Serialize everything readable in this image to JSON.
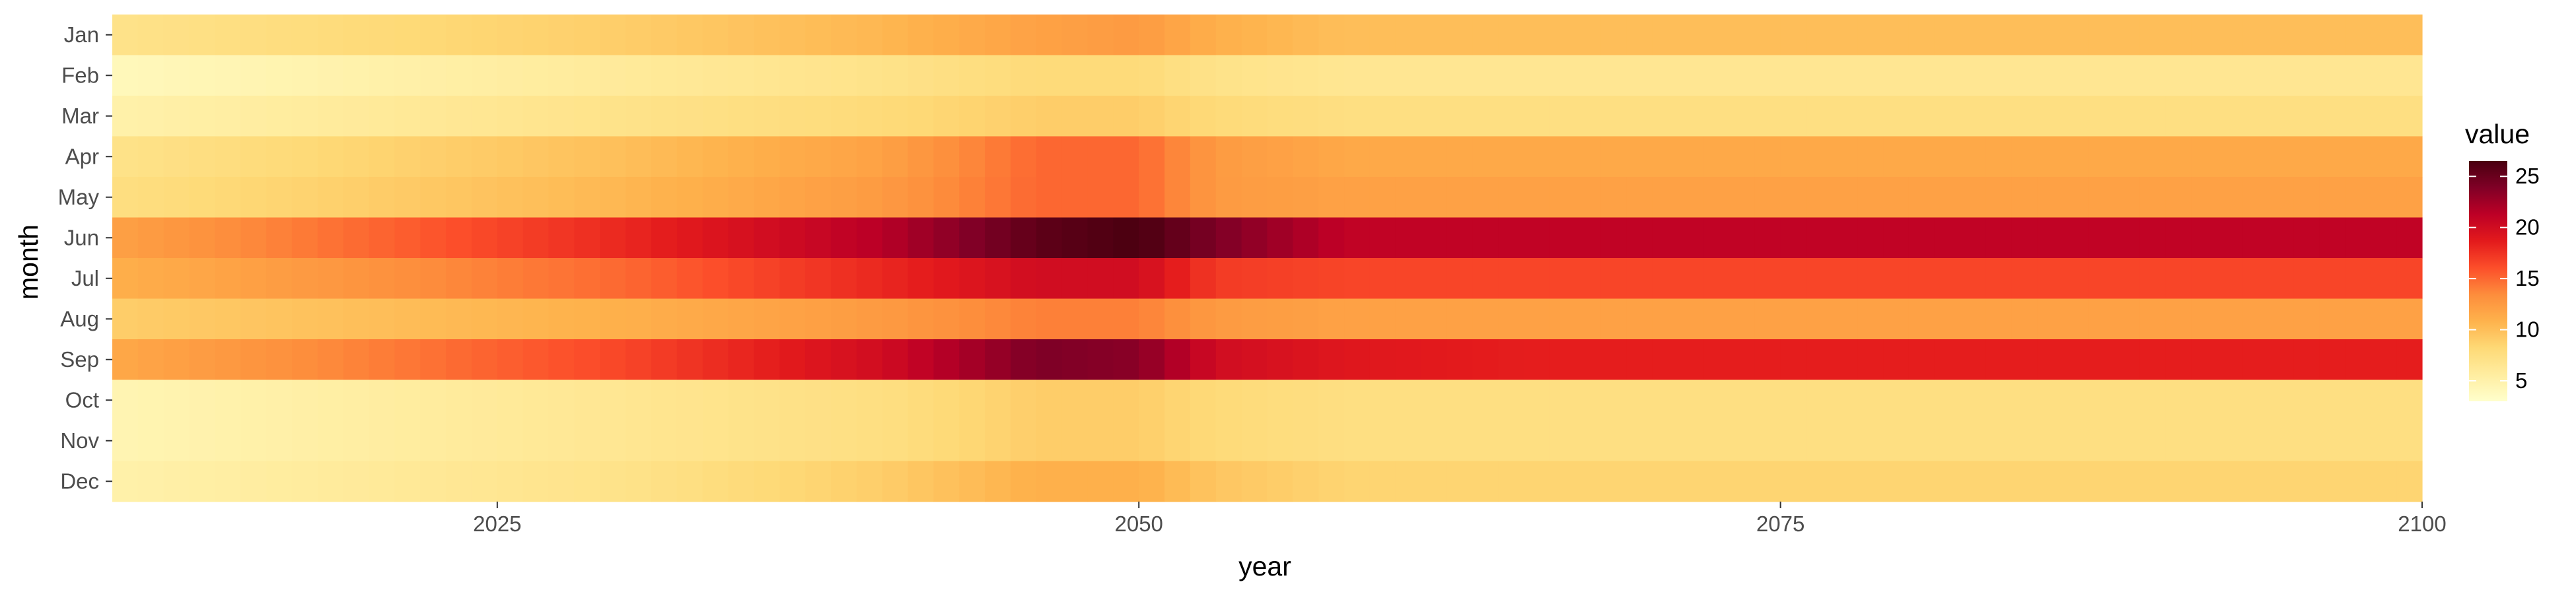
{
  "chart_data": {
    "type": "heatmap",
    "xlabel": "year",
    "ylabel": "month",
    "x_range": [
      2010,
      2100
    ],
    "x_ticks": [
      2025,
      2050,
      2075,
      2100
    ],
    "months": [
      "Jan",
      "Feb",
      "Mar",
      "Apr",
      "May",
      "Jun",
      "Jul",
      "Aug",
      "Sep",
      "Oct",
      "Nov",
      "Dec"
    ],
    "legend": {
      "title": "value",
      "ticks": [
        5,
        10,
        15,
        20,
        25
      ],
      "range": [
        3,
        26.5
      ],
      "placement": "right"
    },
    "color_scale": [
      "#ffffcc",
      "#ffeda0",
      "#fed976",
      "#feb24c",
      "#fd8d3c",
      "#fc4e2a",
      "#e31a1c",
      "#bd0026",
      "#800026",
      "#4a0010"
    ],
    "grid": false,
    "profile_note_values": {
      "years": [
        2010,
        2020,
        2030,
        2040,
        2046,
        2050,
        2053,
        2058,
        2065,
        2075,
        2085,
        2100
      ],
      "series": [
        {
          "month": "Jan",
          "values": [
            7.0,
            8.0,
            9.0,
            10.5,
            12.0,
            12.5,
            11.0,
            10.0,
            10.0,
            10.0,
            10.0,
            10.0
          ]
        },
        {
          "month": "Feb",
          "values": [
            4.0,
            5.0,
            6.0,
            7.0,
            8.0,
            8.0,
            7.0,
            6.5,
            6.5,
            6.5,
            6.5,
            6.5
          ]
        },
        {
          "month": "Mar",
          "values": [
            5.0,
            6.0,
            7.0,
            8.0,
            9.0,
            9.0,
            8.0,
            7.5,
            7.5,
            7.5,
            7.5,
            7.5
          ]
        },
        {
          "month": "Apr",
          "values": [
            7.0,
            8.5,
            10.0,
            12.0,
            15.0,
            15.0,
            12.5,
            11.5,
            11.5,
            11.5,
            11.5,
            11.5
          ]
        },
        {
          "month": "May",
          "values": [
            7.5,
            9.0,
            10.5,
            12.5,
            15.0,
            15.0,
            12.5,
            12.0,
            12.0,
            12.0,
            12.0,
            12.0
          ]
        },
        {
          "month": "Jun",
          "values": [
            12.0,
            15.0,
            18.0,
            21.5,
            25.5,
            26.5,
            24.0,
            21.0,
            21.0,
            21.0,
            21.0,
            21.0
          ]
        },
        {
          "month": "Jul",
          "values": [
            11.0,
            13.0,
            15.0,
            18.0,
            20.0,
            20.0,
            17.0,
            16.5,
            16.5,
            16.5,
            16.5,
            16.5
          ]
        },
        {
          "month": "Aug",
          "values": [
            9.0,
            10.0,
            11.0,
            12.5,
            14.0,
            14.0,
            12.5,
            12.0,
            12.0,
            12.0,
            12.0,
            12.0
          ]
        },
        {
          "month": "Sep",
          "values": [
            11.5,
            14.0,
            16.5,
            20.0,
            24.0,
            23.5,
            20.0,
            19.0,
            18.5,
            18.5,
            18.5,
            18.5
          ]
        },
        {
          "month": "Oct",
          "values": [
            4.5,
            5.5,
            6.5,
            7.5,
            9.0,
            9.0,
            8.0,
            7.5,
            7.5,
            7.5,
            7.5,
            7.5
          ]
        },
        {
          "month": "Nov",
          "values": [
            4.5,
            5.5,
            6.5,
            7.5,
            9.0,
            9.0,
            8.0,
            7.5,
            7.5,
            7.5,
            7.5,
            7.5
          ]
        },
        {
          "month": "Dec",
          "values": [
            5.0,
            6.0,
            7.0,
            9.0,
            11.0,
            11.0,
            9.5,
            8.5,
            8.5,
            8.5,
            8.5,
            8.5
          ]
        }
      ]
    }
  }
}
